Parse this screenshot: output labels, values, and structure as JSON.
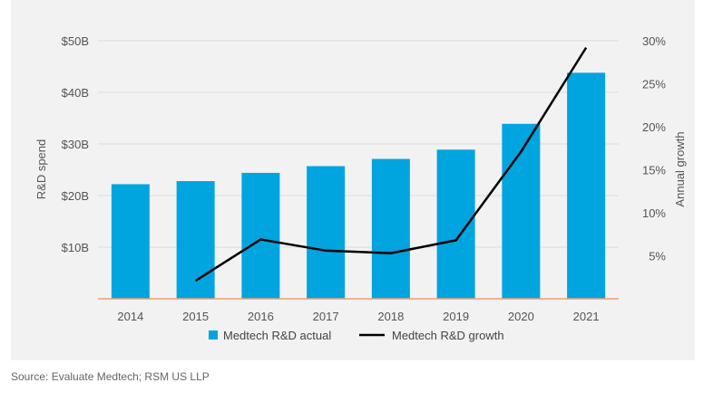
{
  "chart_data": {
    "type": "bar",
    "categories": [
      "2014",
      "2015",
      "2016",
      "2017",
      "2018",
      "2019",
      "2020",
      "2021"
    ],
    "series": [
      {
        "name": "Medtech R&D actual",
        "type": "bar",
        "axis": "left",
        "color": "#00a5e0",
        "values": [
          22.2,
          22.8,
          24.4,
          25.7,
          27.1,
          28.9,
          33.9,
          43.8
        ]
      },
      {
        "name": "Medtech R&D growth",
        "type": "line",
        "axis": "left",
        "axis_note": "right",
        "color": "#000000",
        "values": [
          null,
          2.1,
          6.9,
          5.6,
          5.3,
          6.8,
          17.1,
          29.2
        ]
      }
    ],
    "ylabel": "R&D spend",
    "y2label": "Annual growth",
    "ylim": [
      0,
      50
    ],
    "y2lim": [
      0,
      30
    ],
    "yticks": [
      "$10B",
      "$20B",
      "$30B",
      "$40B",
      "$50B"
    ],
    "y2ticks": [
      "5%",
      "10%",
      "15%",
      "20%",
      "25%",
      "30%"
    ],
    "grid": true,
    "legend": "bottom-center"
  },
  "source": "Source: Evaluate Medtech; RSM US LLP"
}
